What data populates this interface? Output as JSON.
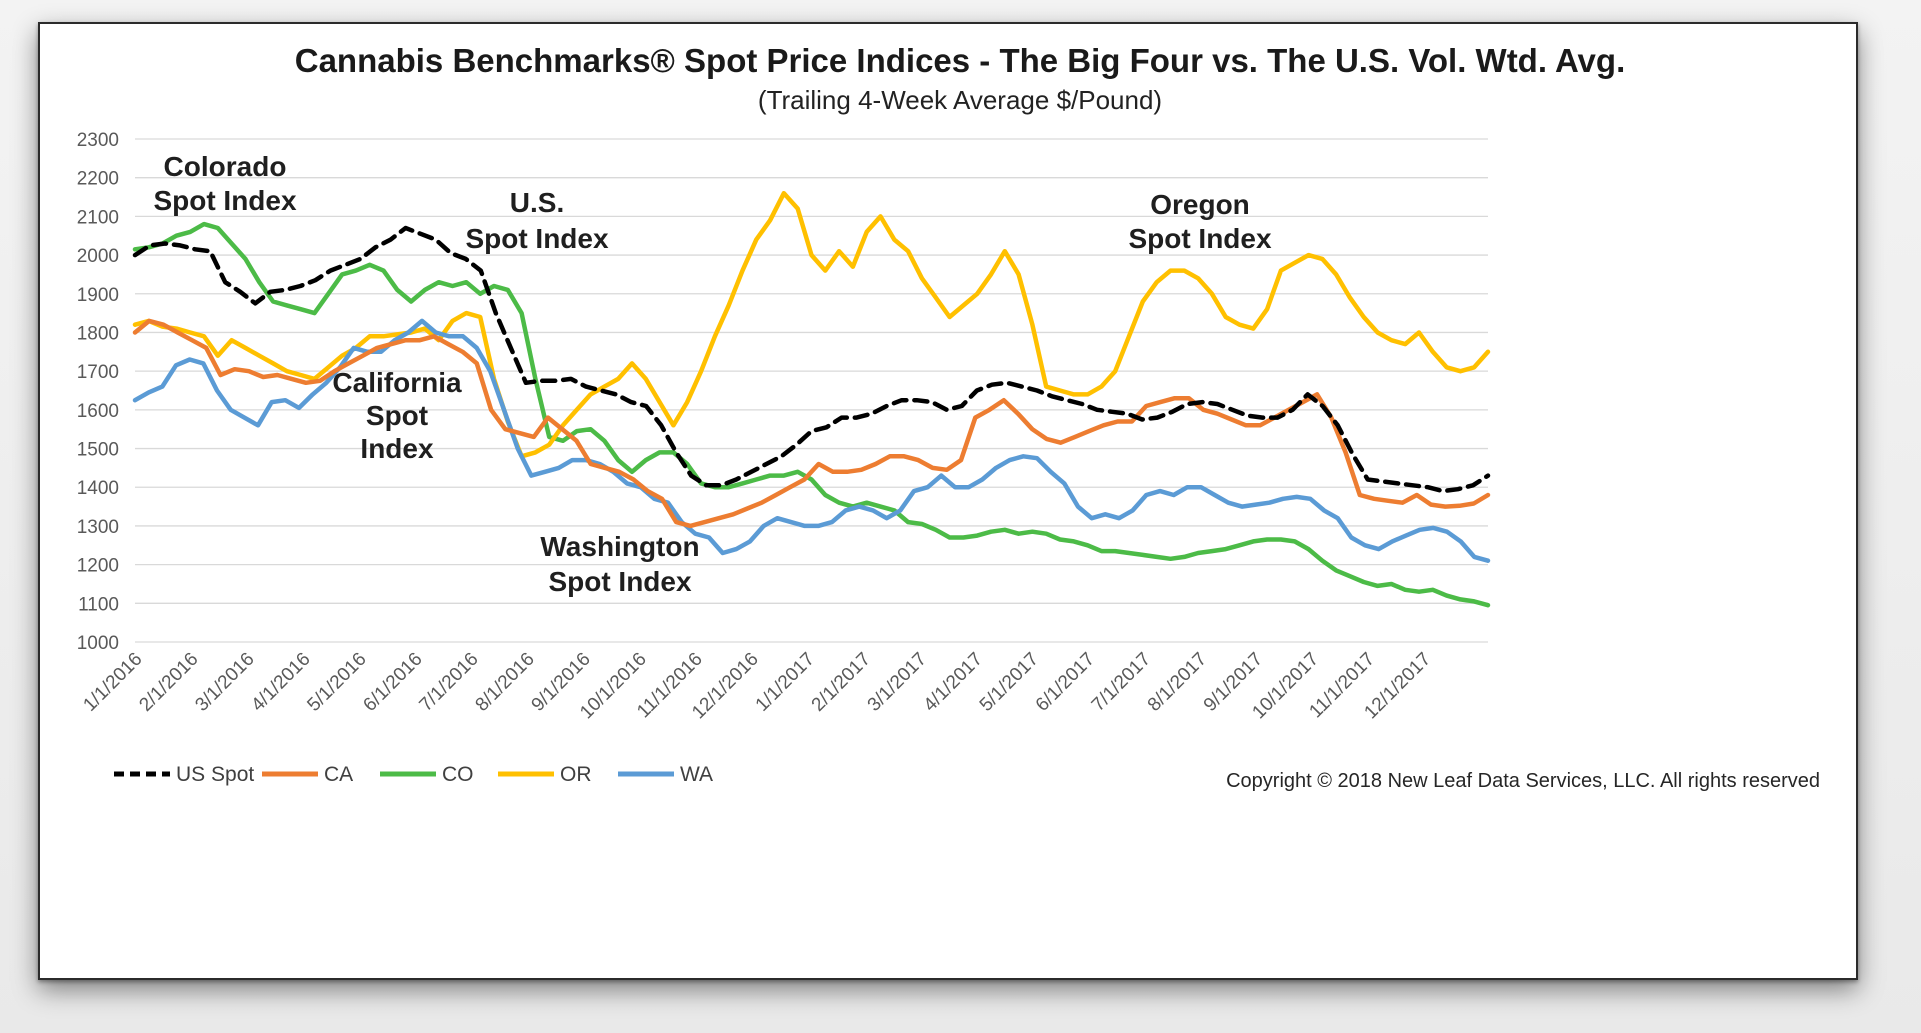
{
  "chart_data": {
    "type": "line",
    "title": "Cannabis Benchmarks® Spot Price Indices - The Big Four vs. The U.S. Vol. Wtd. Avg.",
    "subtitle": "(Trailing 4-Week Average $/Pound)",
    "xlabel": "",
    "ylabel": "",
    "ylim": [
      1000,
      2300
    ],
    "yticks": [
      "1000",
      "1100",
      "1200",
      "1300",
      "1400",
      "1500",
      "1600",
      "1700",
      "1800",
      "1900",
      "2000",
      "2100",
      "2200",
      "2300"
    ],
    "x_tick_labels": [
      "1/1/2016",
      "2/1/2016",
      "3/1/2016",
      "4/1/2016",
      "5/1/2016",
      "6/1/2016",
      "7/1/2016",
      "8/1/2016",
      "9/1/2016",
      "10/1/2016",
      "11/1/2016",
      "12/1/2016",
      "1/1/2017",
      "2/1/2017",
      "3/1/2017",
      "4/1/2017",
      "5/1/2017",
      "6/1/2017",
      "7/1/2017",
      "8/1/2017",
      "9/1/2017",
      "10/1/2017",
      "11/1/2017",
      "12/1/2017"
    ],
    "x_note": "weekly observations; x = weeks since 1/1/2016",
    "grid": true,
    "legend_position": "bottom-left",
    "series": [
      {
        "name": "US Spot",
        "color": "#000000",
        "dash": true,
        "values": [
          2000,
          2025,
          2030,
          2025,
          2015,
          2010,
          1930,
          1905,
          1875,
          1905,
          1910,
          1920,
          1935,
          1960,
          1975,
          1990,
          2020,
          2040,
          2070,
          2055,
          2040,
          2005,
          1990,
          1960,
          1850,
          1760,
          1670,
          1675,
          1675,
          1680,
          1660,
          1650,
          1640,
          1620,
          1610,
          1560,
          1490,
          1430,
          1405,
          1405,
          1420,
          1440,
          1460,
          1480,
          1510,
          1545,
          1555,
          1580,
          1580,
          1590,
          1610,
          1625,
          1625,
          1620,
          1600,
          1610,
          1650,
          1665,
          1670,
          1660,
          1650,
          1635,
          1625,
          1615,
          1600,
          1595,
          1590,
          1575,
          1580,
          1595,
          1615,
          1620,
          1615,
          1600,
          1585,
          1580,
          1580,
          1600,
          1640,
          1610,
          1560,
          1485,
          1420,
          1415,
          1410,
          1405,
          1400,
          1390,
          1395,
          1405,
          1430
        ]
      },
      {
        "name": "CA",
        "color": "#ED7D31",
        "dash": false,
        "values": [
          1800,
          1830,
          1820,
          1800,
          1780,
          1760,
          1690,
          1705,
          1700,
          1685,
          1690,
          1680,
          1670,
          1675,
          1700,
          1720,
          1740,
          1760,
          1770,
          1780,
          1780,
          1790,
          1770,
          1750,
          1720,
          1600,
          1550,
          1540,
          1530,
          1580,
          1550,
          1520,
          1460,
          1450,
          1440,
          1420,
          1390,
          1370,
          1310,
          1300,
          1310,
          1320,
          1330,
          1345,
          1360,
          1380,
          1400,
          1420,
          1460,
          1440,
          1440,
          1445,
          1460,
          1480,
          1480,
          1470,
          1450,
          1445,
          1470,
          1580,
          1600,
          1625,
          1590,
          1550,
          1525,
          1515,
          1530,
          1545,
          1560,
          1570,
          1570,
          1610,
          1620,
          1630,
          1630,
          1600,
          1590,
          1575,
          1560,
          1560,
          1580,
          1600,
          1620,
          1640,
          1580,
          1490,
          1380,
          1370,
          1365,
          1360,
          1380,
          1355,
          1350,
          1352,
          1358,
          1380
        ]
      },
      {
        "name": "CO",
        "color": "#4CBB47",
        "dash": false,
        "values": [
          2015,
          2020,
          2030,
          2050,
          2060,
          2080,
          2070,
          2030,
          1990,
          1930,
          1880,
          1870,
          1860,
          1850,
          1900,
          1950,
          1960,
          1975,
          1960,
          1910,
          1880,
          1910,
          1930,
          1920,
          1930,
          1900,
          1920,
          1910,
          1850,
          1680,
          1530,
          1520,
          1545,
          1550,
          1520,
          1470,
          1440,
          1470,
          1490,
          1490,
          1460,
          1410,
          1400,
          1400,
          1410,
          1420,
          1430,
          1430,
          1440,
          1420,
          1380,
          1360,
          1350,
          1360,
          1350,
          1340,
          1310,
          1305,
          1290,
          1270,
          1270,
          1275,
          1285,
          1290,
          1280,
          1285,
          1280,
          1265,
          1260,
          1250,
          1235,
          1235,
          1230,
          1225,
          1220,
          1215,
          1220,
          1230,
          1235,
          1240,
          1250,
          1260,
          1265,
          1265,
          1260,
          1240,
          1210,
          1185,
          1170,
          1155,
          1145,
          1150,
          1135,
          1130,
          1135,
          1120,
          1110,
          1105,
          1095
        ]
      },
      {
        "name": "OR",
        "color": "#FFC000",
        "dash": false,
        "values": [
          1820,
          1830,
          1815,
          1810,
          1800,
          1790,
          1740,
          1780,
          1760,
          1740,
          1720,
          1700,
          1690,
          1680,
          1710,
          1740,
          1760,
          1790,
          1790,
          1795,
          1800,
          1810,
          1780,
          1830,
          1850,
          1840,
          1680,
          1570,
          1480,
          1490,
          1510,
          1560,
          1600,
          1640,
          1660,
          1680,
          1720,
          1680,
          1620,
          1560,
          1620,
          1700,
          1790,
          1870,
          1960,
          2040,
          2090,
          2160,
          2120,
          2000,
          1960,
          2010,
          1970,
          2060,
          2100,
          2040,
          2010,
          1940,
          1890,
          1840,
          1870,
          1900,
          1950,
          2010,
          1950,
          1820,
          1660,
          1650,
          1640,
          1640,
          1660,
          1700,
          1790,
          1880,
          1930,
          1960,
          1960,
          1940,
          1900,
          1840,
          1820,
          1810,
          1860,
          1960,
          1980,
          2000,
          1990,
          1950,
          1890,
          1840,
          1800,
          1780,
          1770,
          1800,
          1750,
          1710,
          1700,
          1710,
          1750
        ]
      },
      {
        "name": "WA",
        "color": "#5B9BD5",
        "dash": false,
        "values": [
          1625,
          1645,
          1660,
          1715,
          1730,
          1720,
          1650,
          1600,
          1580,
          1560,
          1620,
          1625,
          1605,
          1640,
          1670,
          1710,
          1760,
          1750,
          1750,
          1780,
          1800,
          1830,
          1800,
          1790,
          1790,
          1760,
          1700,
          1600,
          1500,
          1430,
          1440,
          1450,
          1470,
          1470,
          1460,
          1440,
          1410,
          1400,
          1370,
          1360,
          1310,
          1280,
          1270,
          1230,
          1240,
          1260,
          1300,
          1320,
          1310,
          1300,
          1300,
          1310,
          1340,
          1350,
          1340,
          1320,
          1340,
          1390,
          1400,
          1430,
          1400,
          1400,
          1420,
          1450,
          1470,
          1480,
          1475,
          1440,
          1410,
          1350,
          1320,
          1330,
          1320,
          1340,
          1380,
          1390,
          1380,
          1400,
          1400,
          1380,
          1360,
          1350,
          1355,
          1360,
          1370,
          1375,
          1370,
          1340,
          1320,
          1270,
          1250,
          1240,
          1260,
          1275,
          1290,
          1295,
          1285,
          1260,
          1220,
          1210
        ]
      }
    ],
    "annotations": [
      {
        "lines": [
          "Colorado",
          "Spot Index"
        ]
      },
      {
        "lines": [
          "U.S.",
          "Spot Index"
        ]
      },
      {
        "lines": [
          "Oregon",
          "Spot Index"
        ]
      },
      {
        "lines": [
          "California",
          "Spot",
          "Index"
        ]
      },
      {
        "lines": [
          "Washington",
          "Spot Index"
        ]
      }
    ],
    "copyright": "Copyright © 2018 New Leaf Data Services, LLC. All rights reserved"
  }
}
